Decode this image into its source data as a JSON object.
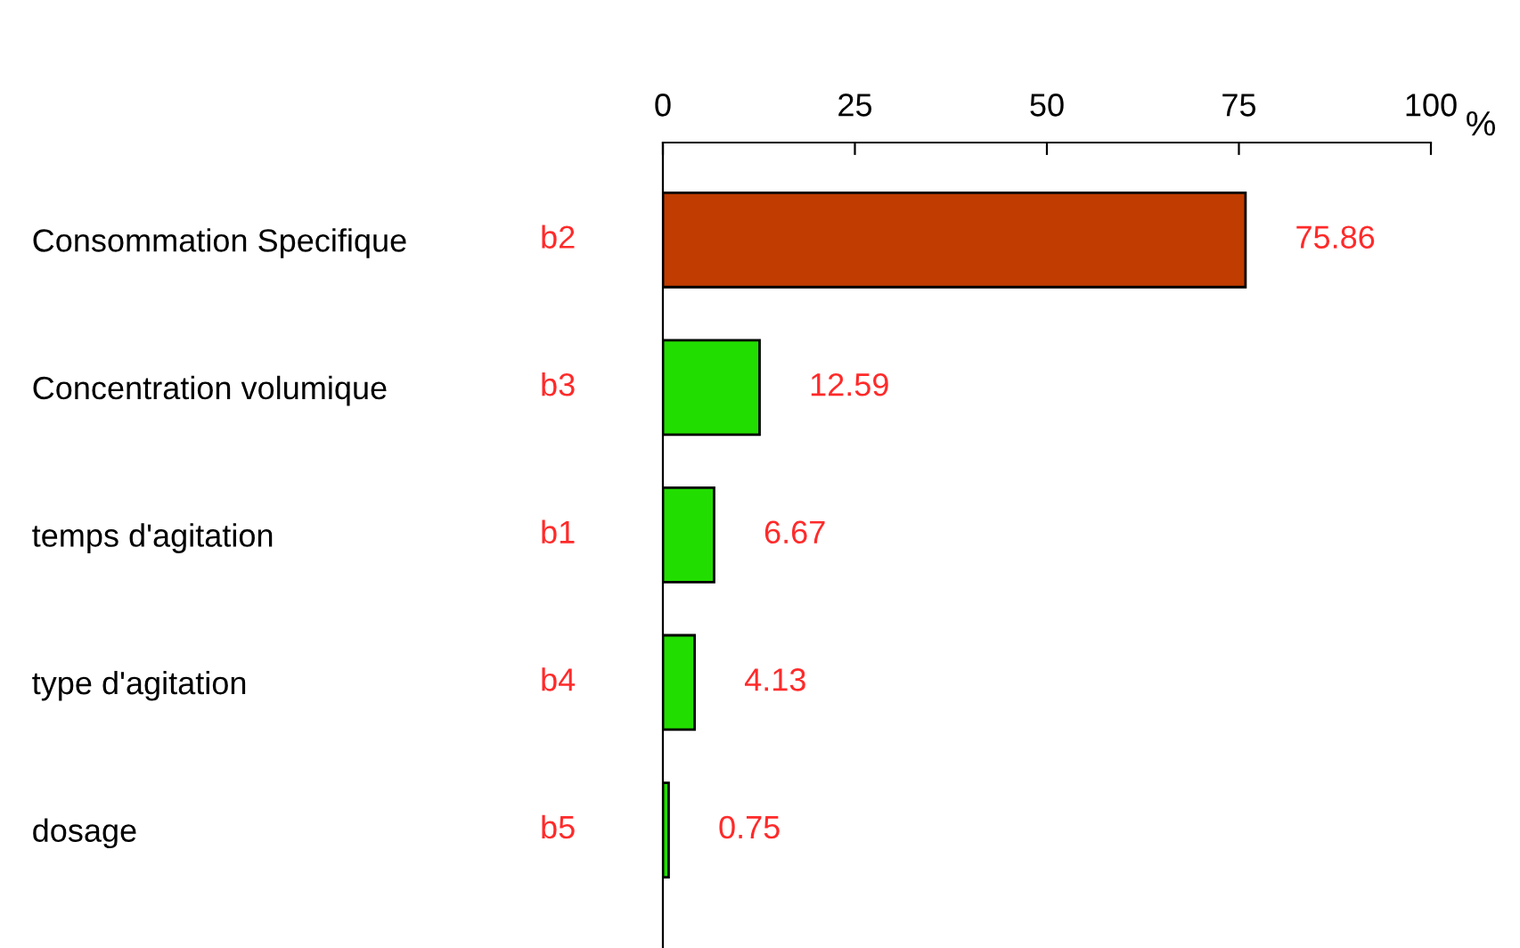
{
  "chart_data": {
    "type": "bar",
    "orientation": "horizontal",
    "categories": [
      "Consommation Specifique",
      "Concentration volumique",
      "temps d'agitation",
      "type d'agitation",
      "dosage"
    ],
    "values": [
      75.86,
      12.59,
      6.67,
      4.13,
      0.75
    ],
    "colors": [
      "#c03c00",
      "#22dd00",
      "#22dd00",
      "#22dd00",
      "#22dd00"
    ],
    "x2lim": [
      0,
      100
    ],
    "x2ticks": [
      0,
      25,
      50,
      75,
      100
    ],
    "x2label": "%",
    "data_labels": true,
    "grid": false,
    "legend": false,
    "annotations": [
      "b2",
      "b3",
      "b1",
      "b4",
      "b5"
    ]
  }
}
